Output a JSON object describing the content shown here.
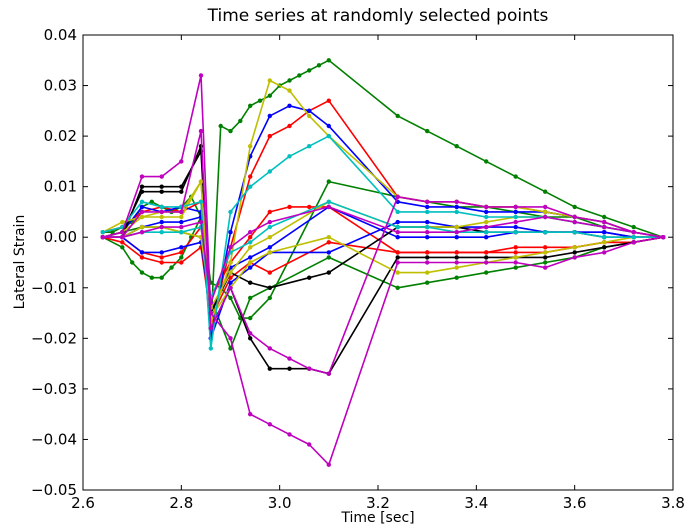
{
  "chart_data": {
    "type": "line",
    "title": "Time series at randomly selected points",
    "xlabel": "Time [sec]",
    "ylabel": "Lateral Strain",
    "xlim": [
      2.6,
      3.8
    ],
    "ylim": [
      -0.05,
      0.04
    ],
    "xticks": [
      2.6,
      2.8,
      3.0,
      3.2,
      3.4,
      3.6,
      3.8
    ],
    "yticks": [
      -0.05,
      -0.04,
      -0.03,
      -0.02,
      -0.01,
      0.0,
      0.01,
      0.02,
      0.03,
      0.04
    ],
    "xtick_labels": [
      "2.6",
      "2.8",
      "3.0",
      "3.2",
      "3.4",
      "3.6",
      "3.8"
    ],
    "ytick_labels": [
      "−0.05",
      "−0.04",
      "−0.03",
      "−0.02",
      "−0.01",
      "0.00",
      "0.01",
      "0.02",
      "0.03",
      "0.04"
    ],
    "grid": false,
    "legend": false,
    "series": [
      {
        "color": "#008000",
        "x": [
          2.64,
          2.66,
          2.68,
          2.7,
          2.72,
          2.74,
          2.76,
          2.78,
          2.8,
          2.82,
          2.84,
          2.86,
          2.88,
          2.9,
          2.92,
          2.94,
          2.96,
          2.98,
          3.0,
          3.02,
          3.04,
          3.06,
          3.08,
          3.1,
          3.24,
          3.3,
          3.36,
          3.42,
          3.48,
          3.54,
          3.6,
          3.66,
          3.72,
          3.78
        ],
        "y": [
          0.001,
          0.001,
          0.002,
          0.003,
          0.006,
          0.007,
          0.006,
          0.005,
          0.006,
          0.008,
          0.004,
          -0.018,
          0.022,
          0.021,
          0.023,
          0.026,
          0.027,
          0.028,
          0.03,
          0.031,
          0.032,
          0.033,
          0.034,
          0.035,
          0.024,
          0.021,
          0.018,
          0.015,
          0.012,
          0.009,
          0.006,
          0.004,
          0.002,
          0.0
        ]
      },
      {
        "color": "#008000",
        "x": [
          2.64,
          2.68,
          2.7,
          2.72,
          2.74,
          2.76,
          2.78,
          2.8,
          2.82,
          2.84,
          2.86,
          2.88,
          2.9,
          2.92,
          2.94,
          2.98,
          3.1,
          3.24,
          3.3,
          3.36,
          3.42,
          3.48,
          3.54,
          3.6,
          3.66,
          3.72,
          3.78
        ],
        "y": [
          0.0,
          -0.002,
          -0.005,
          -0.007,
          -0.008,
          -0.008,
          -0.006,
          -0.004,
          0.0,
          0.004,
          -0.009,
          -0.01,
          -0.012,
          -0.016,
          -0.016,
          -0.012,
          0.011,
          0.008,
          0.007,
          0.006,
          0.006,
          0.005,
          0.004,
          0.004,
          0.002,
          0.001,
          0.0
        ]
      },
      {
        "color": "#008000",
        "x": [
          2.64,
          2.68,
          2.72,
          2.76,
          2.8,
          2.84,
          2.86,
          2.9,
          2.94,
          2.98,
          3.1,
          3.24,
          3.3,
          3.36,
          3.42,
          3.48,
          3.54,
          3.6,
          3.66,
          3.72,
          3.78
        ],
        "y": [
          0.0,
          0.001,
          0.002,
          0.002,
          0.001,
          0.0,
          -0.012,
          -0.022,
          -0.012,
          -0.01,
          -0.004,
          -0.01,
          -0.009,
          -0.008,
          -0.007,
          -0.006,
          -0.005,
          -0.004,
          -0.002,
          -0.001,
          0.0
        ]
      },
      {
        "color": "#ff0000",
        "x": [
          2.64,
          2.68,
          2.72,
          2.76,
          2.8,
          2.84,
          2.86,
          2.9,
          2.94,
          2.98,
          3.02,
          3.06,
          3.1,
          3.24,
          3.3,
          3.36,
          3.42,
          3.48,
          3.54,
          3.6,
          3.66,
          3.72,
          3.78
        ],
        "y": [
          0.001,
          0.002,
          0.005,
          0.006,
          0.005,
          0.007,
          -0.018,
          -0.002,
          0.012,
          0.02,
          0.022,
          0.025,
          0.027,
          0.008,
          0.007,
          0.007,
          0.006,
          0.006,
          0.005,
          0.004,
          0.003,
          0.001,
          0.0
        ]
      },
      {
        "color": "#ff0000",
        "x": [
          2.64,
          2.68,
          2.72,
          2.76,
          2.8,
          2.84,
          2.86,
          2.9,
          2.94,
          2.98,
          3.02,
          3.06,
          3.1,
          3.24,
          3.3,
          3.36,
          3.42,
          3.48,
          3.54,
          3.6,
          3.66,
          3.72,
          3.78
        ],
        "y": [
          0.0,
          0.0,
          -0.003,
          -0.004,
          -0.003,
          0.002,
          -0.012,
          -0.005,
          0.0,
          0.005,
          0.006,
          0.006,
          0.006,
          -0.003,
          -0.003,
          -0.003,
          -0.003,
          -0.003,
          -0.003,
          -0.002,
          -0.001,
          -0.001,
          0.0
        ]
      },
      {
        "color": "#ff0000",
        "x": [
          2.64,
          2.68,
          2.72,
          2.76,
          2.8,
          2.84,
          2.86,
          2.9,
          2.94,
          2.98,
          3.1,
          3.24,
          3.3,
          3.36,
          3.42,
          3.48,
          3.54,
          3.6,
          3.66,
          3.72,
          3.78
        ],
        "y": [
          0.0,
          -0.001,
          -0.004,
          -0.005,
          -0.005,
          -0.002,
          -0.016,
          -0.008,
          -0.005,
          -0.007,
          -0.001,
          -0.003,
          -0.003,
          -0.003,
          -0.003,
          -0.002,
          -0.002,
          -0.002,
          -0.001,
          -0.001,
          0.0
        ]
      },
      {
        "color": "#0000ff",
        "x": [
          2.64,
          2.68,
          2.72,
          2.76,
          2.8,
          2.84,
          2.86,
          2.9,
          2.94,
          2.98,
          3.02,
          3.06,
          3.1,
          3.24,
          3.3,
          3.36,
          3.42,
          3.48,
          3.54,
          3.6,
          3.66,
          3.72,
          3.78
        ],
        "y": [
          0.0,
          0.001,
          0.006,
          0.005,
          0.006,
          0.005,
          -0.02,
          0.001,
          0.016,
          0.024,
          0.026,
          0.025,
          0.022,
          0.007,
          0.006,
          0.006,
          0.005,
          0.005,
          0.005,
          0.004,
          0.003,
          0.001,
          0.0
        ]
      },
      {
        "color": "#0000ff",
        "x": [
          2.64,
          2.68,
          2.72,
          2.76,
          2.8,
          2.84,
          2.86,
          2.9,
          2.94,
          2.98,
          3.1,
          3.24,
          3.3,
          3.36,
          3.42,
          3.48,
          3.54,
          3.6,
          3.66,
          3.72,
          3.78
        ],
        "y": [
          0.0,
          0.0,
          -0.003,
          -0.003,
          -0.002,
          -0.001,
          -0.015,
          -0.006,
          -0.004,
          -0.002,
          0.006,
          0.0,
          0.0,
          0.0,
          0.0,
          0.001,
          0.001,
          0.001,
          0.001,
          0.0,
          0.0
        ]
      },
      {
        "color": "#0000ff",
        "x": [
          2.64,
          2.68,
          2.72,
          2.76,
          2.8,
          2.84,
          2.86,
          2.9,
          2.94,
          2.98,
          3.1,
          3.24,
          3.3,
          3.36,
          3.42,
          3.48,
          3.54,
          3.6,
          3.66,
          3.72,
          3.78
        ],
        "y": [
          0.0,
          0.0,
          0.002,
          0.003,
          0.003,
          0.004,
          -0.02,
          -0.009,
          -0.006,
          -0.003,
          -0.003,
          0.003,
          0.003,
          0.002,
          0.002,
          0.002,
          0.001,
          0.001,
          0.001,
          0.0,
          0.0
        ]
      },
      {
        "color": "#000000",
        "x": [
          2.64,
          2.68,
          2.72,
          2.76,
          2.8,
          2.84,
          2.86,
          2.9,
          2.94,
          2.98,
          3.02,
          3.06,
          3.1,
          3.24,
          3.3,
          3.36,
          3.42,
          3.48,
          3.54,
          3.6,
          3.66,
          3.72,
          3.78
        ],
        "y": [
          0.0,
          0.0,
          0.01,
          0.01,
          0.01,
          0.017,
          -0.018,
          -0.01,
          -0.02,
          -0.026,
          -0.026,
          -0.026,
          -0.027,
          -0.004,
          -0.004,
          -0.004,
          -0.004,
          -0.004,
          -0.004,
          -0.003,
          -0.002,
          -0.001,
          0.0
        ]
      },
      {
        "color": "#000000",
        "x": [
          2.64,
          2.68,
          2.72,
          2.76,
          2.8,
          2.84,
          2.86,
          2.9,
          2.94,
          2.98,
          3.06,
          3.1,
          3.24,
          3.3,
          3.36,
          3.42,
          3.48,
          3.54,
          3.6,
          3.66,
          3.72,
          3.78
        ],
        "y": [
          0.0,
          0.001,
          0.009,
          0.009,
          0.009,
          0.018,
          -0.015,
          -0.007,
          -0.009,
          -0.01,
          -0.008,
          -0.007,
          0.002,
          0.002,
          0.002,
          0.001,
          0.001,
          0.001,
          0.001,
          0.0,
          0.0,
          0.0
        ]
      },
      {
        "color": "#bfbf00",
        "x": [
          2.64,
          2.68,
          2.72,
          2.76,
          2.8,
          2.84,
          2.86,
          2.9,
          2.94,
          2.98,
          3.02,
          3.06,
          3.1,
          3.24,
          3.3,
          3.36,
          3.42,
          3.48,
          3.54,
          3.6,
          3.66,
          3.72,
          3.78
        ],
        "y": [
          0.0,
          0.001,
          0.004,
          0.005,
          0.005,
          0.011,
          -0.017,
          -0.005,
          0.018,
          0.031,
          0.029,
          0.024,
          0.02,
          0.008,
          0.007,
          0.007,
          0.006,
          0.006,
          0.005,
          0.004,
          0.003,
          0.001,
          0.0
        ]
      },
      {
        "color": "#bfbf00",
        "x": [
          2.64,
          2.68,
          2.72,
          2.76,
          2.8,
          2.84,
          2.86,
          2.9,
          2.94,
          2.98,
          3.1,
          3.24,
          3.3,
          3.36,
          3.42,
          3.48,
          3.54,
          3.6,
          3.66,
          3.72,
          3.78
        ],
        "y": [
          0.001,
          0.003,
          0.004,
          0.004,
          0.004,
          0.011,
          -0.016,
          -0.01,
          -0.005,
          -0.003,
          0.0,
          -0.007,
          -0.007,
          -0.006,
          -0.005,
          -0.004,
          -0.003,
          -0.002,
          -0.001,
          0.0,
          0.0
        ]
      },
      {
        "color": "#bfbf00",
        "x": [
          2.64,
          2.68,
          2.72,
          2.76,
          2.8,
          2.84,
          2.86,
          2.9,
          2.94,
          2.98,
          3.1,
          3.24,
          3.3,
          3.36,
          3.42,
          3.48,
          3.54,
          3.6,
          3.66,
          3.72,
          3.78
        ],
        "y": [
          0.0,
          0.0,
          0.002,
          0.002,
          0.001,
          0.0,
          -0.014,
          -0.007,
          -0.002,
          0.0,
          0.007,
          0.002,
          0.002,
          0.002,
          0.003,
          0.004,
          0.004,
          0.003,
          0.002,
          0.001,
          0.0
        ]
      },
      {
        "color": "#00bfbf",
        "x": [
          2.64,
          2.68,
          2.72,
          2.76,
          2.8,
          2.84,
          2.86,
          2.9,
          2.94,
          2.98,
          3.02,
          3.06,
          3.1,
          3.24,
          3.3,
          3.36,
          3.42,
          3.48,
          3.54,
          3.6,
          3.66,
          3.72,
          3.78
        ],
        "y": [
          0.001,
          0.002,
          0.007,
          0.006,
          0.006,
          0.007,
          -0.022,
          0.005,
          0.01,
          0.013,
          0.016,
          0.018,
          0.02,
          0.005,
          0.005,
          0.005,
          0.004,
          0.004,
          0.004,
          0.003,
          0.002,
          0.001,
          0.0
        ]
      },
      {
        "color": "#00bfbf",
        "x": [
          2.64,
          2.68,
          2.72,
          2.76,
          2.8,
          2.84,
          2.86,
          2.9,
          2.94,
          2.98,
          3.1,
          3.24,
          3.3,
          3.36,
          3.42,
          3.48,
          3.54,
          3.6,
          3.66,
          3.72,
          3.78
        ],
        "y": [
          0.0,
          0.0,
          0.001,
          0.001,
          0.001,
          0.002,
          -0.012,
          -0.003,
          -0.001,
          0.002,
          0.007,
          0.002,
          0.002,
          0.001,
          0.001,
          0.001,
          0.001,
          0.001,
          0.0,
          0.0,
          0.0
        ]
      },
      {
        "color": "#bf00bf",
        "x": [
          2.64,
          2.68,
          2.72,
          2.76,
          2.8,
          2.84,
          2.86,
          2.9,
          2.94,
          2.98,
          3.02,
          3.06,
          3.1,
          3.24,
          3.3,
          3.36,
          3.42,
          3.48,
          3.54,
          3.6,
          3.66,
          3.72,
          3.78
        ],
        "y": [
          0.0,
          0.001,
          0.012,
          0.012,
          0.015,
          0.032,
          -0.015,
          -0.02,
          -0.035,
          -0.037,
          -0.039,
          -0.041,
          -0.045,
          -0.005,
          -0.005,
          -0.005,
          -0.005,
          -0.005,
          -0.006,
          -0.004,
          -0.003,
          -0.001,
          0.0
        ]
      },
      {
        "color": "#bf00bf",
        "x": [
          2.64,
          2.68,
          2.72,
          2.76,
          2.8,
          2.84,
          2.86,
          2.9,
          2.94,
          2.98,
          3.02,
          3.06,
          3.1,
          3.24,
          3.3,
          3.36,
          3.42,
          3.48,
          3.54,
          3.6,
          3.66,
          3.72,
          3.78
        ],
        "y": [
          0.0,
          0.0,
          0.005,
          0.005,
          0.005,
          0.021,
          -0.018,
          -0.01,
          -0.019,
          -0.022,
          -0.024,
          -0.026,
          -0.027,
          0.008,
          0.007,
          0.007,
          0.006,
          0.006,
          0.006,
          0.004,
          0.003,
          0.001,
          0.0
        ]
      },
      {
        "color": "#bf00bf",
        "x": [
          2.64,
          2.68,
          2.72,
          2.76,
          2.8,
          2.84,
          2.86,
          2.9,
          2.94,
          2.98,
          3.1,
          3.24,
          3.3,
          3.36,
          3.42,
          3.48,
          3.54,
          3.6,
          3.66,
          3.72,
          3.78
        ],
        "y": [
          0.0,
          0.0,
          0.001,
          0.002,
          0.002,
          0.003,
          -0.013,
          -0.002,
          0.001,
          0.003,
          0.006,
          0.001,
          0.001,
          0.001,
          0.002,
          0.003,
          0.004,
          0.003,
          0.002,
          0.001,
          0.0
        ]
      }
    ]
  }
}
